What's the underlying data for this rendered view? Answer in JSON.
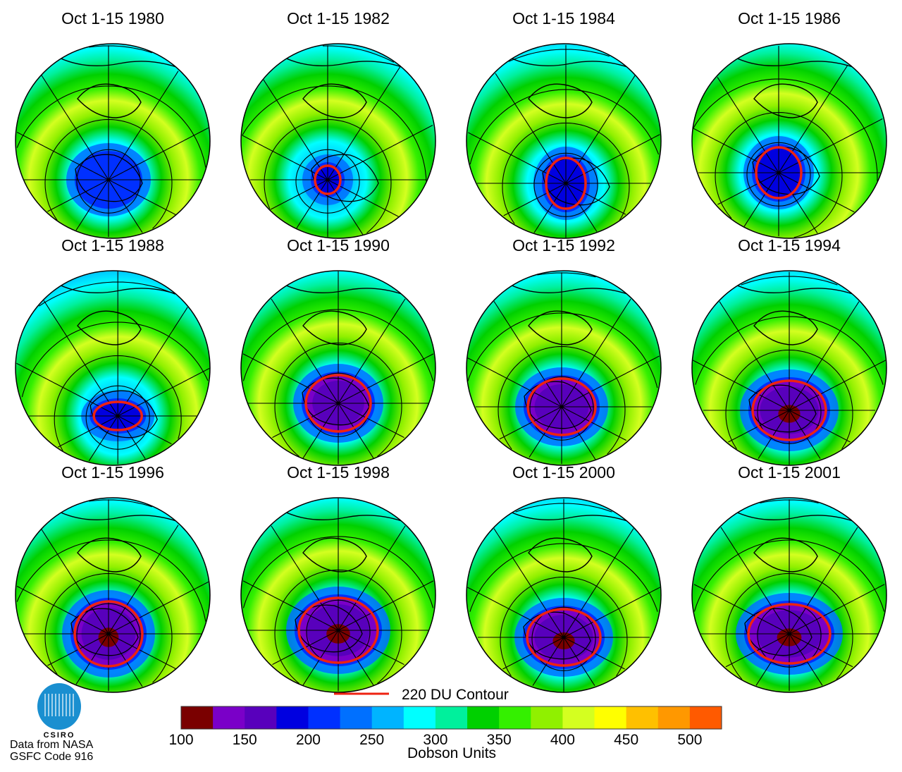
{
  "panels": [
    {
      "title": "Oct 1-15 1980",
      "contour_220": false
    },
    {
      "title": "Oct 1-15 1982",
      "contour_220": true
    },
    {
      "title": "Oct 1-15 1984",
      "contour_220": true
    },
    {
      "title": "Oct 1-15 1986",
      "contour_220": true
    },
    {
      "title": "Oct 1-15 1988",
      "contour_220": true
    },
    {
      "title": "Oct 1-15 1990",
      "contour_220": true
    },
    {
      "title": "Oct 1-15 1992",
      "contour_220": true
    },
    {
      "title": "Oct 1-15 1994",
      "contour_220": true
    },
    {
      "title": "Oct 1-15 1996",
      "contour_220": true
    },
    {
      "title": "Oct 1-15 1998",
      "contour_220": true
    },
    {
      "title": "Oct 1-15 2000",
      "contour_220": true
    },
    {
      "title": "Oct 1-15 2001",
      "contour_220": true
    }
  ],
  "legend": {
    "contour_label": "220 DU Contour",
    "contour_color": "#ee2211",
    "units_label": "Dobson Units",
    "bins_start": 100,
    "bin_width": 25,
    "colors": [
      "#7a0000",
      "#7a00c8",
      "#5800bc",
      "#0000e0",
      "#0030ff",
      "#0070ff",
      "#00b4ff",
      "#00ffff",
      "#00f09c",
      "#00d000",
      "#34f000",
      "#90f000",
      "#d4ff20",
      "#ffff00",
      "#ffc000",
      "#ff9800",
      "#ff5a00"
    ],
    "tick_labels": [
      "100",
      "150",
      "200",
      "250",
      "300",
      "350",
      "400",
      "450",
      "500"
    ]
  },
  "logo": {
    "text": "CSIRO"
  },
  "credit": {
    "line1": "Data from NASA",
    "line2": "GSFC Code 916"
  }
}
